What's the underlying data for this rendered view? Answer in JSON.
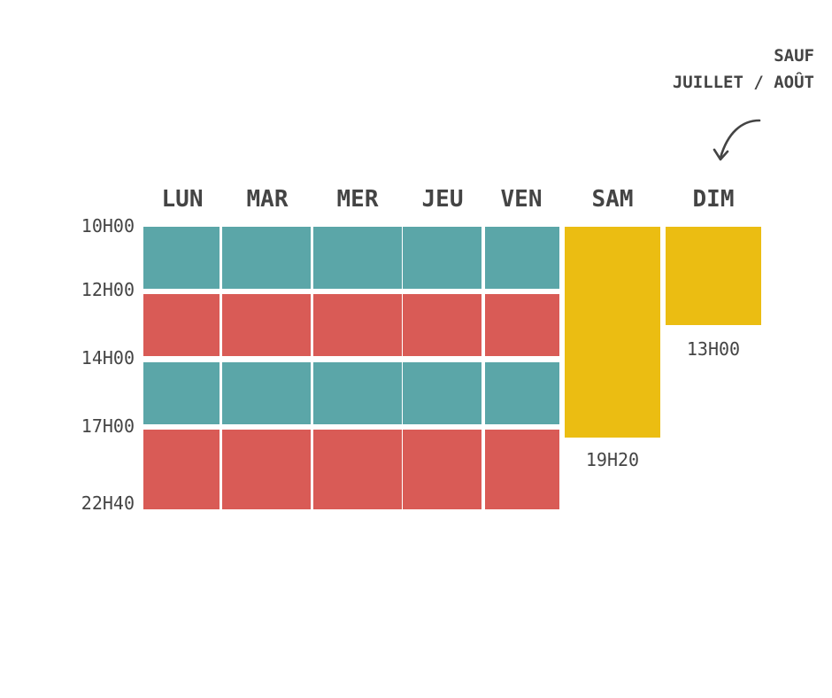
{
  "days": [
    "LUN",
    "MAR",
    "MER",
    "JEU",
    "VEN",
    "SAM",
    "DIM"
  ],
  "time_labels": [
    "10H00",
    "12H00",
    "14H00",
    "17H00",
    "22H40"
  ],
  "weekend_end_times": {
    "SAM": "19H20",
    "DIM": "13H00"
  },
  "note": {
    "line1": "SAUF",
    "line2": "JUILLET / AOÛT"
  },
  "arrow_icon": "curved-arrow-down-icon",
  "colors": {
    "teal": "#5ba6a8",
    "red": "#d95b56",
    "yellow": "#ebbd12",
    "text": "#444444"
  },
  "weekday_bands": [
    "teal",
    "red",
    "teal",
    "red"
  ]
}
